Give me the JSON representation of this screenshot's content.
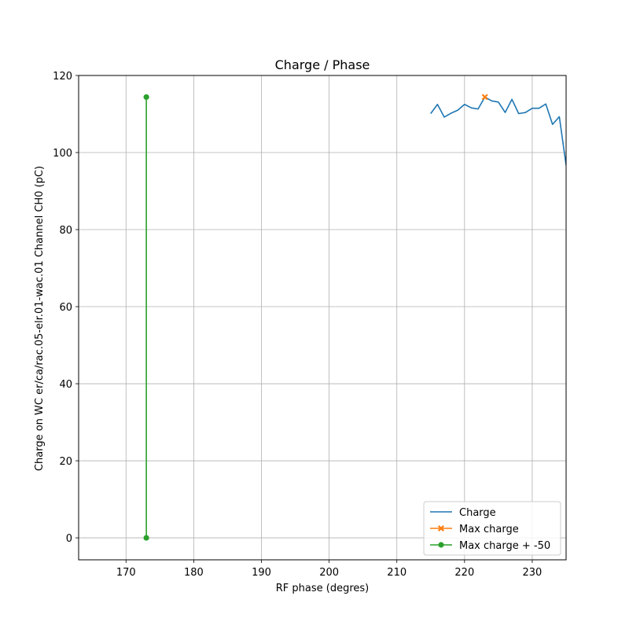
{
  "chart_data": {
    "type": "line",
    "title": "Charge / Phase",
    "xlabel": "RF phase (degres)",
    "ylabel": "Charge on WC er/ca/rac.05-elr.01-wac.01 Channel CH0 (pC)",
    "xlim": [
      163,
      235
    ],
    "ylim": [
      -5.7,
      120
    ],
    "xticks": [
      170,
      180,
      190,
      200,
      210,
      220,
      230
    ],
    "yticks": [
      0,
      20,
      40,
      60,
      80,
      100,
      120
    ],
    "grid": true,
    "legend_position": "lower-right",
    "series": [
      {
        "name": "Charge",
        "color": "#1f77b4",
        "marker": "none",
        "x": [
          215,
          216,
          217,
          218,
          219,
          220,
          221,
          222,
          223,
          224,
          225,
          226,
          227,
          228,
          229,
          230,
          231,
          232,
          233,
          234,
          235
        ],
        "y": [
          110.1,
          112.5,
          109.2,
          110.2,
          111.0,
          112.5,
          111.6,
          111.3,
          114.4,
          113.4,
          113.1,
          110.4,
          113.8,
          110.1,
          110.4,
          111.5,
          111.5,
          112.6,
          107.3,
          109.3,
          96.7
        ]
      },
      {
        "name": "Max charge",
        "color": "#ff7f0e",
        "marker": "x",
        "x": [
          223
        ],
        "y": [
          114.4
        ]
      },
      {
        "name": "Max charge + -50",
        "color": "#2ca02c",
        "marker": "o",
        "x": [
          173,
          173
        ],
        "y": [
          114.4,
          0
        ]
      }
    ]
  }
}
